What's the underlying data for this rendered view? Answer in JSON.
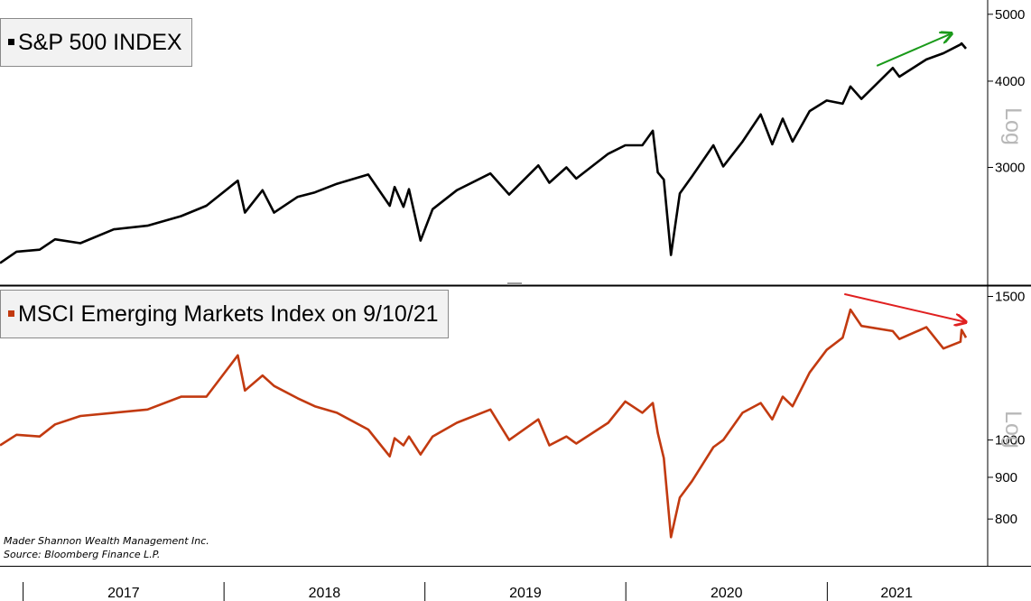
{
  "source_lines": [
    "Mader Shannon Wealth Management Inc.",
    "Source: Bloomberg Finance L.P."
  ],
  "x_axis": {
    "labels": [
      "2017",
      "2018",
      "2019",
      "2020",
      "2021"
    ]
  },
  "colors": {
    "spx": "#000000",
    "em": "#c23a10",
    "arrow_up": "#1a9a1a",
    "arrow_down": "#e02020"
  },
  "chart_data": [
    {
      "type": "line",
      "title": "S&P 500 INDEX",
      "scale": "log",
      "scale_label": "Log",
      "ylim": [
        2050,
        5150
      ],
      "yticks": [
        {
          "value": 3000,
          "label": "3000"
        },
        {
          "value": 4000,
          "label": "4000"
        },
        {
          "value": 5000,
          "label": "5000"
        }
      ],
      "annotation": {
        "type": "arrow",
        "color": "green",
        "from": {
          "x": "2021-04",
          "y": 4210
        },
        "to": {
          "x": "2021-08-15",
          "y": 4690
        }
      },
      "series": [
        {
          "color": "#000000",
          "points": [
            [
              "2016-11-20",
              2180
            ],
            [
              "2016-12-20",
              2265
            ],
            [
              "2017-01-31",
              2280
            ],
            [
              "2017-02-28",
              2360
            ],
            [
              "2017-04-15",
              2330
            ],
            [
              "2017-06-15",
              2440
            ],
            [
              "2017-08-15",
              2470
            ],
            [
              "2017-10-15",
              2550
            ],
            [
              "2017-11-30",
              2640
            ],
            [
              "2018-01-26",
              2870
            ],
            [
              "2018-02-08",
              2580
            ],
            [
              "2018-03-12",
              2780
            ],
            [
              "2018-04-02",
              2580
            ],
            [
              "2018-05-15",
              2720
            ],
            [
              "2018-06-15",
              2760
            ],
            [
              "2018-07-25",
              2840
            ],
            [
              "2018-09-20",
              2930
            ],
            [
              "2018-10-29",
              2640
            ],
            [
              "2018-11-07",
              2810
            ],
            [
              "2018-11-23",
              2630
            ],
            [
              "2018-12-03",
              2790
            ],
            [
              "2018-12-24",
              2350
            ],
            [
              "2019-01-15",
              2610
            ],
            [
              "2019-02-28",
              2780
            ],
            [
              "2019-04-30",
              2940
            ],
            [
              "2019-06-03",
              2740
            ],
            [
              "2019-07-26",
              3020
            ],
            [
              "2019-08-15",
              2850
            ],
            [
              "2019-09-15",
              3000
            ],
            [
              "2019-10-03",
              2890
            ],
            [
              "2019-11-30",
              3140
            ],
            [
              "2019-12-31",
              3230
            ],
            [
              "2020-01-31",
              3230
            ],
            [
              "2020-02-19",
              3390
            ],
            [
              "2020-02-28",
              2950
            ],
            [
              "2020-03-10",
              2880
            ],
            [
              "2020-03-23",
              2240
            ],
            [
              "2020-04-08",
              2750
            ],
            [
              "2020-04-30",
              2910
            ],
            [
              "2020-06-08",
              3230
            ],
            [
              "2020-06-26",
              3010
            ],
            [
              "2020-07-31",
              3270
            ],
            [
              "2020-09-02",
              3580
            ],
            [
              "2020-09-23",
              3240
            ],
            [
              "2020-10-12",
              3530
            ],
            [
              "2020-10-30",
              3270
            ],
            [
              "2020-11-30",
              3620
            ],
            [
              "2020-12-31",
              3750
            ],
            [
              "2021-01-29",
              3710
            ],
            [
              "2021-02-12",
              3930
            ],
            [
              "2021-03-04",
              3770
            ],
            [
              "2021-04-30",
              4180
            ],
            [
              "2021-05-12",
              4060
            ],
            [
              "2021-06-30",
              4300
            ],
            [
              "2021-07-31",
              4390
            ],
            [
              "2021-08-31",
              4520
            ],
            [
              "2021-09-02",
              4537
            ],
            [
              "2021-09-10",
              4458
            ]
          ]
        }
      ]
    },
    {
      "type": "line",
      "title": "MSCI Emerging Markets Index  on 9/10/21",
      "scale": "log",
      "scale_label": "Log",
      "ylim": [
        710,
        1525
      ],
      "yticks": [
        {
          "value": 800,
          "label": "800"
        },
        {
          "value": 900,
          "label": "900"
        },
        {
          "value": 1000,
          "label": "1000"
        },
        {
          "value": 1500,
          "label": "1500"
        }
      ],
      "annotation": {
        "type": "arrow",
        "color": "red",
        "from": {
          "x": "2021-02-01",
          "y": 1510
        },
        "to": {
          "x": "2021-09-10",
          "y": 1395
        }
      },
      "series": [
        {
          "color": "#c23a10",
          "points": [
            [
              "2016-11-20",
              985
            ],
            [
              "2016-12-20",
              1015
            ],
            [
              "2017-01-31",
              1010
            ],
            [
              "2017-02-28",
              1045
            ],
            [
              "2017-04-15",
              1070
            ],
            [
              "2017-06-15",
              1080
            ],
            [
              "2017-08-15",
              1090
            ],
            [
              "2017-10-15",
              1130
            ],
            [
              "2017-11-30",
              1130
            ],
            [
              "2018-01-26",
              1270
            ],
            [
              "2018-02-08",
              1150
            ],
            [
              "2018-03-12",
              1200
            ],
            [
              "2018-04-02",
              1165
            ],
            [
              "2018-05-15",
              1125
            ],
            [
              "2018-06-15",
              1100
            ],
            [
              "2018-07-25",
              1080
            ],
            [
              "2018-09-20",
              1030
            ],
            [
              "2018-10-29",
              955
            ],
            [
              "2018-11-07",
              1005
            ],
            [
              "2018-11-23",
              985
            ],
            [
              "2018-12-03",
              1010
            ],
            [
              "2018-12-24",
              960
            ],
            [
              "2019-01-15",
              1010
            ],
            [
              "2019-02-28",
              1050
            ],
            [
              "2019-04-30",
              1090
            ],
            [
              "2019-06-03",
              1000
            ],
            [
              "2019-07-26",
              1060
            ],
            [
              "2019-08-15",
              985
            ],
            [
              "2019-09-15",
              1010
            ],
            [
              "2019-10-03",
              990
            ],
            [
              "2019-11-30",
              1050
            ],
            [
              "2019-12-31",
              1115
            ],
            [
              "2020-01-31",
              1080
            ],
            [
              "2020-02-19",
              1110
            ],
            [
              "2020-02-28",
              1020
            ],
            [
              "2020-03-10",
              950
            ],
            [
              "2020-03-23",
              760
            ],
            [
              "2020-04-08",
              850
            ],
            [
              "2020-04-30",
              890
            ],
            [
              "2020-06-08",
              980
            ],
            [
              "2020-06-26",
              1000
            ],
            [
              "2020-07-31",
              1080
            ],
            [
              "2020-09-02",
              1110
            ],
            [
              "2020-09-23",
              1060
            ],
            [
              "2020-10-12",
              1130
            ],
            [
              "2020-10-30",
              1100
            ],
            [
              "2020-11-30",
              1210
            ],
            [
              "2020-12-31",
              1290
            ],
            [
              "2021-01-29",
              1335
            ],
            [
              "2021-02-12",
              1445
            ],
            [
              "2021-03-04",
              1380
            ],
            [
              "2021-04-30",
              1360
            ],
            [
              "2021-05-12",
              1330
            ],
            [
              "2021-06-30",
              1375
            ],
            [
              "2021-07-31",
              1295
            ],
            [
              "2021-08-31",
              1320
            ],
            [
              "2021-09-02",
              1365
            ],
            [
              "2021-09-10",
              1335
            ]
          ]
        }
      ]
    }
  ]
}
